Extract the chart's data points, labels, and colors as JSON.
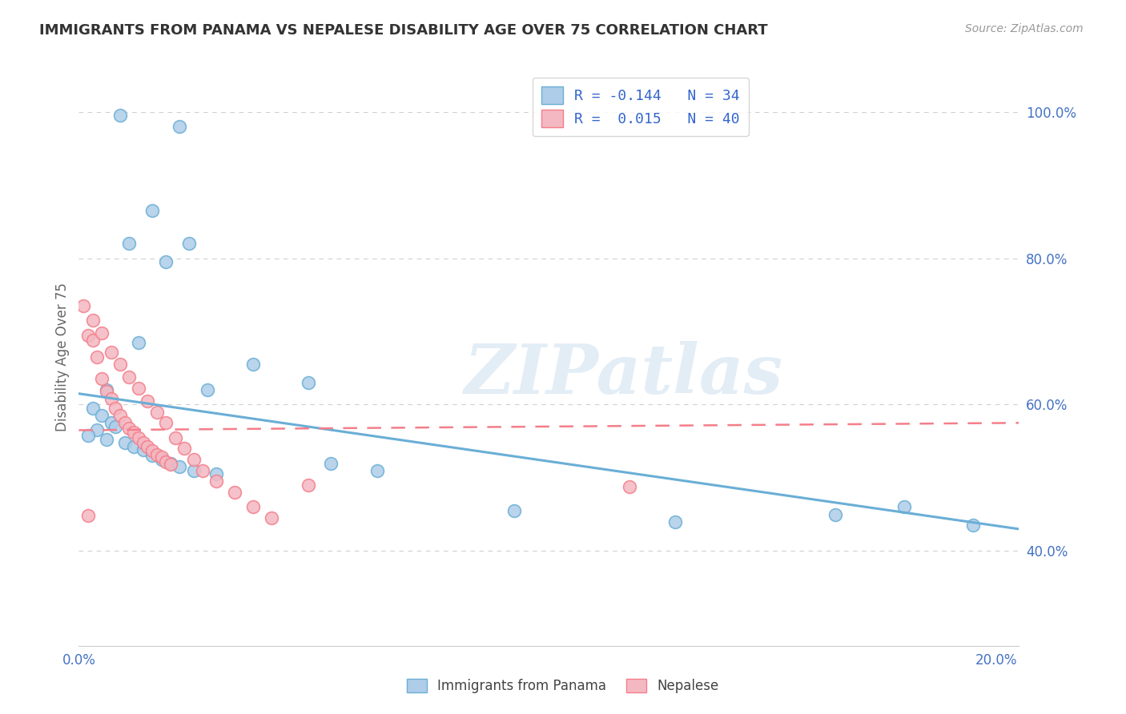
{
  "title": "IMMIGRANTS FROM PANAMA VS NEPALESE DISABILITY AGE OVER 75 CORRELATION CHART",
  "source": "Source: ZipAtlas.com",
  "ylabel": "Disability Age Over 75",
  "xlim": [
    0.0,
    0.205
  ],
  "ylim": [
    0.27,
    1.06
  ],
  "yticks": [
    0.4,
    0.6,
    0.8,
    1.0
  ],
  "ytick_labels": [
    "40.0%",
    "60.0%",
    "80.0%",
    "100.0%"
  ],
  "xticks": [
    0.0,
    0.05,
    0.1,
    0.15,
    0.2
  ],
  "xtick_labels": [
    "0.0%",
    "",
    "",
    "",
    "20.0%"
  ],
  "legend_line1": "R = -0.144   N = 34",
  "legend_line2": "R =  0.015   N = 40",
  "blue_x": [
    0.009,
    0.022,
    0.016,
    0.011,
    0.019,
    0.024,
    0.013,
    0.006,
    0.003,
    0.005,
    0.007,
    0.008,
    0.004,
    0.002,
    0.006,
    0.01,
    0.012,
    0.014,
    0.016,
    0.018,
    0.02,
    0.022,
    0.025,
    0.03,
    0.028,
    0.038,
    0.05,
    0.055,
    0.065,
    0.095,
    0.13,
    0.165,
    0.18,
    0.195
  ],
  "blue_y": [
    0.995,
    0.98,
    0.865,
    0.82,
    0.795,
    0.82,
    0.685,
    0.62,
    0.595,
    0.585,
    0.575,
    0.57,
    0.565,
    0.558,
    0.552,
    0.548,
    0.543,
    0.538,
    0.53,
    0.525,
    0.52,
    0.515,
    0.51,
    0.505,
    0.62,
    0.655,
    0.63,
    0.52,
    0.51,
    0.455,
    0.44,
    0.45,
    0.46,
    0.435
  ],
  "pink_x": [
    0.001,
    0.002,
    0.003,
    0.004,
    0.005,
    0.006,
    0.007,
    0.008,
    0.009,
    0.01,
    0.011,
    0.012,
    0.013,
    0.014,
    0.015,
    0.016,
    0.017,
    0.018,
    0.019,
    0.02,
    0.003,
    0.005,
    0.007,
    0.009,
    0.011,
    0.013,
    0.015,
    0.017,
    0.019,
    0.021,
    0.023,
    0.025,
    0.027,
    0.03,
    0.034,
    0.038,
    0.042,
    0.05,
    0.12,
    0.002
  ],
  "pink_y": [
    0.735,
    0.695,
    0.688,
    0.665,
    0.635,
    0.618,
    0.608,
    0.595,
    0.585,
    0.575,
    0.568,
    0.562,
    0.555,
    0.548,
    0.542,
    0.537,
    0.532,
    0.528,
    0.522,
    0.518,
    0.715,
    0.698,
    0.672,
    0.655,
    0.638,
    0.622,
    0.605,
    0.59,
    0.575,
    0.555,
    0.54,
    0.525,
    0.51,
    0.495,
    0.48,
    0.46,
    0.445,
    0.49,
    0.488,
    0.448
  ],
  "blue_line_x": [
    0.0,
    0.205
  ],
  "blue_line_y": [
    0.615,
    0.43
  ],
  "pink_line_x": [
    0.0,
    0.205
  ],
  "pink_line_y": [
    0.565,
    0.575
  ],
  "blue_dot_color": "#6aaed6",
  "blue_face_color": "#aecde8",
  "pink_dot_color": "#f47e8a",
  "pink_face_color": "#f4b8c2",
  "watermark_text": "ZIPatlas",
  "bg_color": "#ffffff",
  "grid_color": "#d0d0d0",
  "title_color": "#333333",
  "source_color": "#999999",
  "axis_label_color": "#666666",
  "tick_color": "#4472c4",
  "legend_text_color": "#3366cc",
  "bottom_legend_color": "#444444"
}
